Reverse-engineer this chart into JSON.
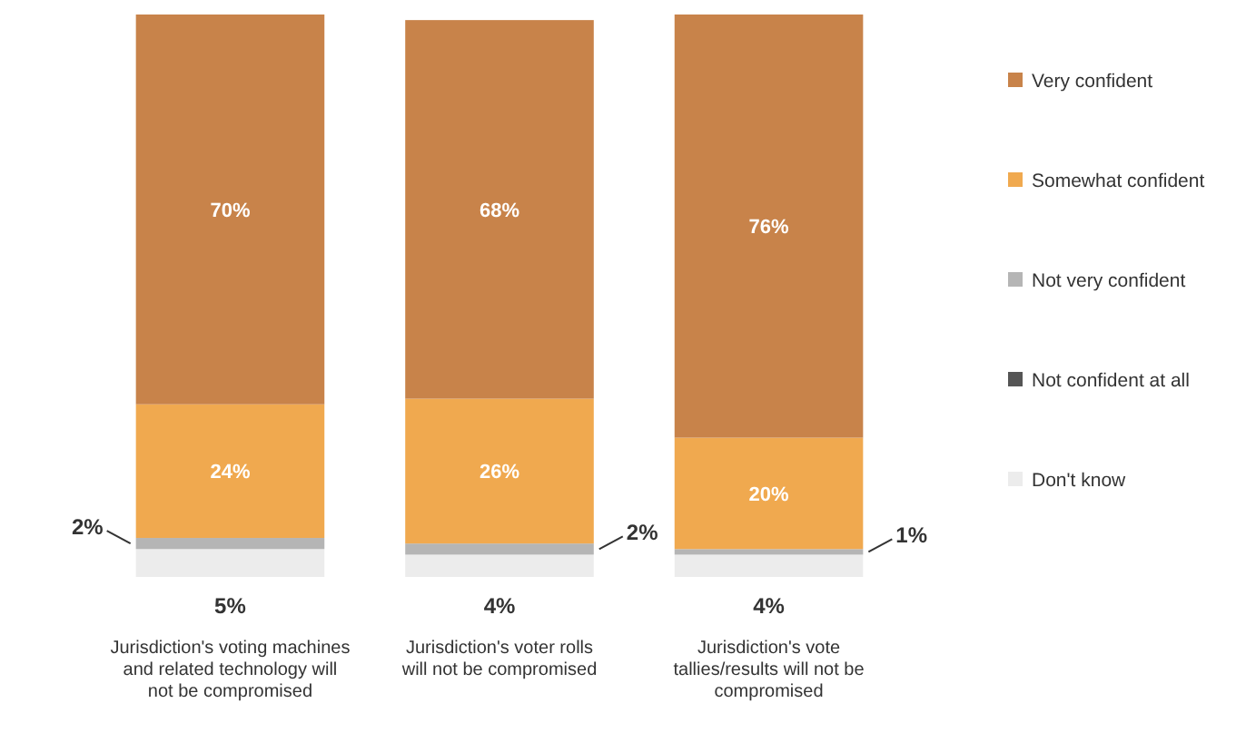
{
  "chart_data": {
    "type": "bar",
    "stacked": true,
    "legend": "right",
    "categories": [
      "Jurisdiction's voting machines and related technology will not be compromised",
      "Jurisdiction's voter rolls will not be compromised",
      "Jurisdiction's vote tallies/results will not be compromised"
    ],
    "series": [
      {
        "name": "Don't know",
        "color": "#ececec",
        "values": [
          5,
          4,
          4
        ],
        "value_labels": [
          "5%",
          "4%",
          "4%"
        ]
      },
      {
        "name": "Not confident at all",
        "color": "#555555",
        "values": [
          0,
          0,
          0
        ],
        "value_labels": [
          null,
          null,
          null
        ]
      },
      {
        "name": "Not very confident",
        "color": "#b5b5b5",
        "values": [
          2,
          2,
          1
        ],
        "value_labels": [
          "2%",
          "2%",
          "1%"
        ]
      },
      {
        "name": "Somewhat confident",
        "color": "#f0a94f",
        "values": [
          24,
          26,
          20
        ],
        "value_labels": [
          "24%",
          "26%",
          "20%"
        ]
      },
      {
        "name": "Very confident",
        "color": "#c8834a",
        "values": [
          70,
          68,
          76
        ],
        "value_labels": [
          "70%",
          "68%",
          "76%"
        ]
      }
    ]
  }
}
